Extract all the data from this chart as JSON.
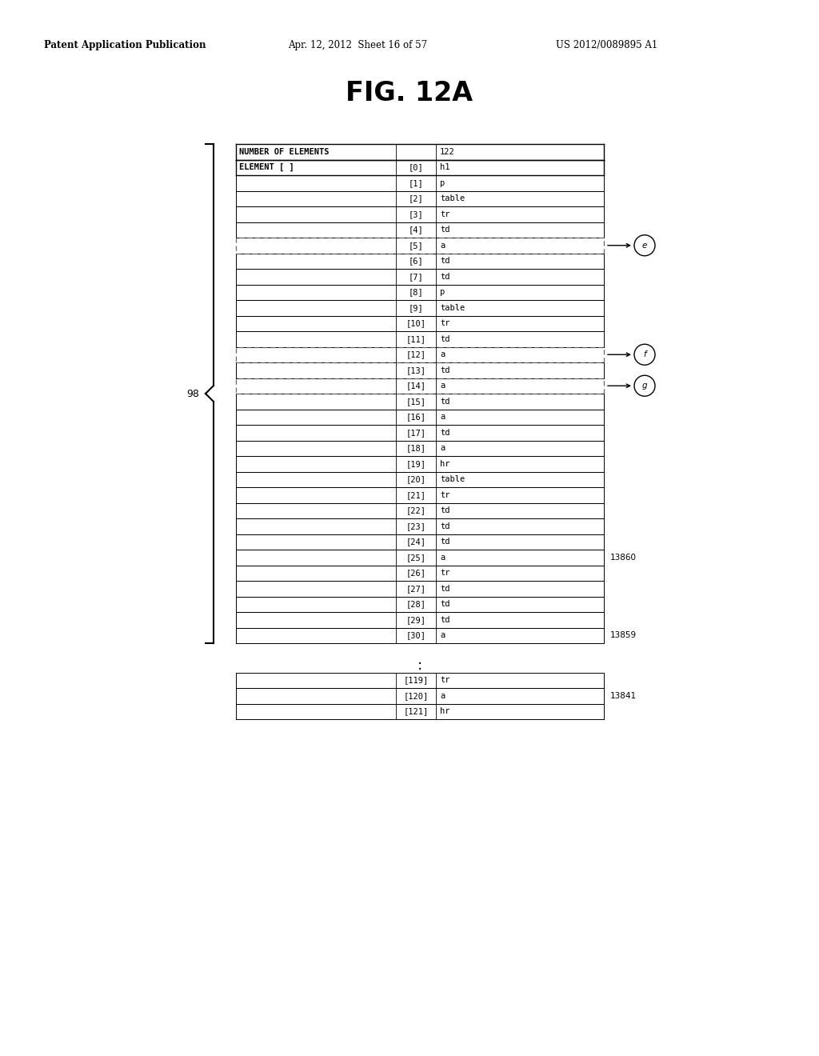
{
  "title": "FIG. 12A",
  "header_line1": "Patent Application Publication",
  "header_line2": "Apr. 12, 2012  Sheet 16 of 57",
  "header_line3": "US 2012/0089895 A1",
  "table_header_rows": [
    {
      "col1": "NUMBER OF ELEMENTS",
      "col2": "",
      "col3": "122"
    },
    {
      "col1": "ELEMENT [ ]",
      "col2": "[0]",
      "col3": "h1"
    }
  ],
  "table_rows": [
    {
      "col2": "[1]",
      "col3": "p",
      "dashed": false
    },
    {
      "col2": "[2]",
      "col3": "table",
      "dashed": false
    },
    {
      "col2": "[3]",
      "col3": "tr",
      "dashed": false
    },
    {
      "col2": "[4]",
      "col3": "td",
      "dashed": false
    },
    {
      "col2": "[5]",
      "col3": "a",
      "dashed": true,
      "arrow_label": "e"
    },
    {
      "col2": "[6]",
      "col3": "td",
      "dashed": false
    },
    {
      "col2": "[7]",
      "col3": "td",
      "dashed": false
    },
    {
      "col2": "[8]",
      "col3": "p",
      "dashed": false
    },
    {
      "col2": "[9]",
      "col3": "table",
      "dashed": false
    },
    {
      "col2": "[10]",
      "col3": "tr",
      "dashed": false
    },
    {
      "col2": "[11]",
      "col3": "td",
      "dashed": false
    },
    {
      "col2": "[12]",
      "col3": "a",
      "dashed": true,
      "arrow_label": "f"
    },
    {
      "col2": "[13]",
      "col3": "td",
      "dashed": false
    },
    {
      "col2": "[14]",
      "col3": "a",
      "dashed": true,
      "arrow_label": "g"
    },
    {
      "col2": "[15]",
      "col3": "td",
      "dashed": false
    },
    {
      "col2": "[16]",
      "col3": "a",
      "dashed": false
    },
    {
      "col2": "[17]",
      "col3": "td",
      "dashed": false
    },
    {
      "col2": "[18]",
      "col3": "a",
      "dashed": false
    },
    {
      "col2": "[19]",
      "col3": "hr",
      "dashed": false
    },
    {
      "col2": "[20]",
      "col3": "table",
      "dashed": false
    },
    {
      "col2": "[21]",
      "col3": "tr",
      "dashed": false
    },
    {
      "col2": "[22]",
      "col3": "td",
      "dashed": false
    },
    {
      "col2": "[23]",
      "col3": "td",
      "dashed": false
    },
    {
      "col2": "[24]",
      "col3": "td",
      "dashed": false
    },
    {
      "col2": "[25]",
      "col3": "a",
      "dashed": false,
      "right_label": "13860"
    },
    {
      "col2": "[26]",
      "col3": "tr",
      "dashed": false
    },
    {
      "col2": "[27]",
      "col3": "td",
      "dashed": false
    },
    {
      "col2": "[28]",
      "col3": "td",
      "dashed": false
    },
    {
      "col2": "[29]",
      "col3": "td",
      "dashed": false
    },
    {
      "col2": "[30]",
      "col3": "a",
      "dashed": false,
      "right_label": "13859"
    }
  ],
  "bottom_rows": [
    {
      "col2": "[119]",
      "col3": "tr"
    },
    {
      "col2": "[120]",
      "col3": "a",
      "right_label": "13841"
    },
    {
      "col2": "[121]",
      "col3": "hr"
    }
  ],
  "brace_label": "98",
  "bg_color": "#ffffff",
  "text_color": "#000000"
}
